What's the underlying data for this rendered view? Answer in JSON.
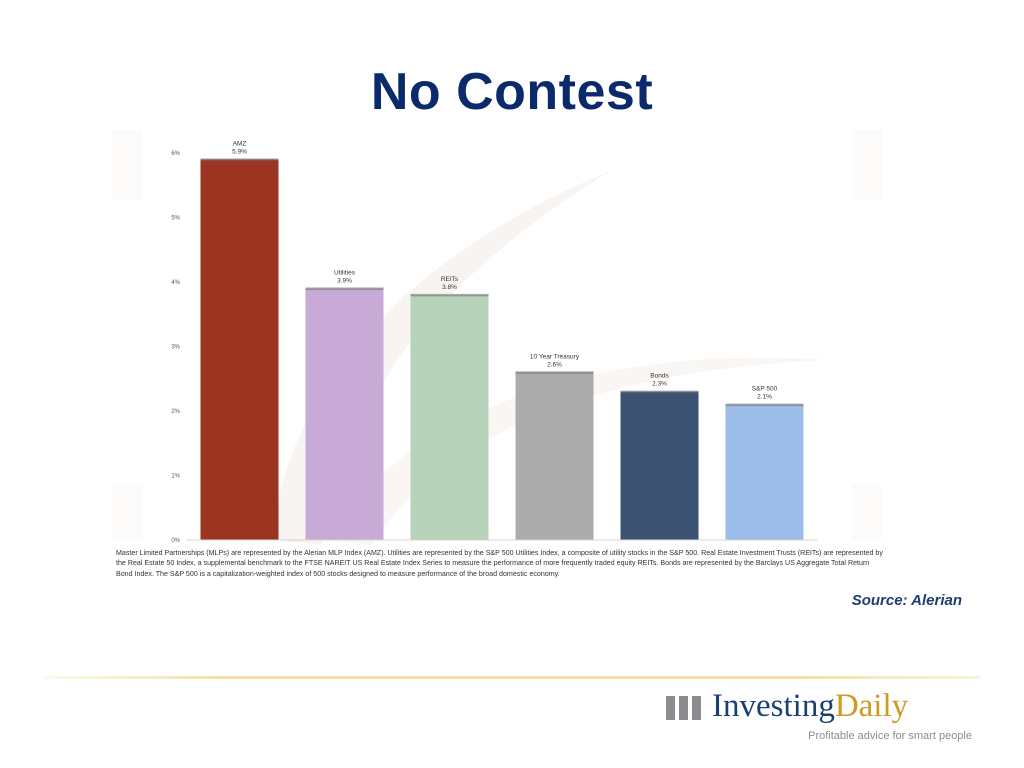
{
  "slide": {
    "title": "No Contest",
    "footnote": "Master Limited Partnerships (MLPs) are represented by the Alerian MLP Index (AMZ). Utilities are represented by the S&P 500 Utilities Index, a composite of utility stocks in the S&P 500. Real Estate Investment Trusts (REITs) are represented by the Real Estate 50 Index, a supplemental benchmark to the FTSE NAREIT US Real Estate Index Series to measure the performance of more frequently traded equity REITs. Bonds are represented by the Barclays US Aggregate Total Return Bond Index. The S&P 500 is a capitalization-weighted index of 500 stocks designed to measure performance of the broad domestic economy.",
    "source": "Source: Alerian"
  },
  "logo": {
    "mark": "III",
    "name_part1": "Investing",
    "name_part2": "Daily",
    "tagline": "Profitable advice for smart people"
  },
  "colors": {
    "title": "#0b2a6b",
    "source": "#1f3d73"
  },
  "chart_data": {
    "type": "bar",
    "title": "",
    "xlabel": "",
    "ylabel": "",
    "categories": [
      "AMZ",
      "Utilities",
      "REITs",
      "10 Year Treasury",
      "Bonds",
      "S&P 500"
    ],
    "values": [
      5.9,
      3.9,
      3.8,
      2.6,
      2.3,
      2.1
    ],
    "value_labels": [
      "5.9%",
      "3.9%",
      "3.8%",
      "2.6%",
      "2.3%",
      "2.1%"
    ],
    "bar_colors": [
      "#9b3522",
      "#c7aad6",
      "#b7d3b9",
      "#acacac",
      "#3b5273",
      "#9cbdea"
    ],
    "ylim": [
      0,
      6
    ],
    "yticks": [
      0,
      1,
      2,
      3,
      4,
      5,
      6
    ],
    "ytick_labels": [
      "0%",
      "1%",
      "2%",
      "3%",
      "4%",
      "5%",
      "6%"
    ],
    "grid": false,
    "legend": "none"
  }
}
